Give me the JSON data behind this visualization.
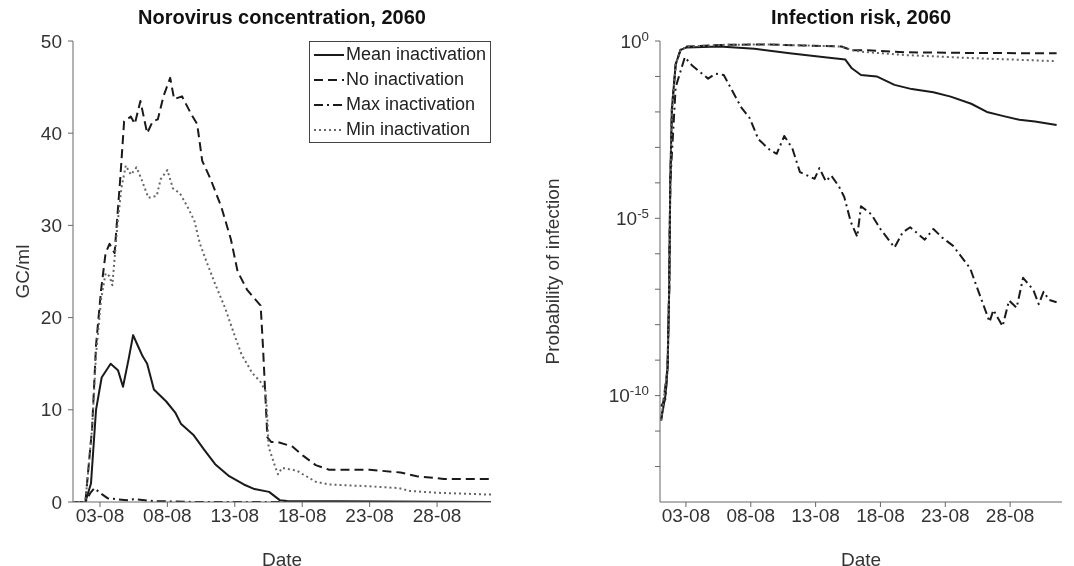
{
  "chart_data": [
    {
      "type": "line",
      "title": "Norovirus concentration, 2060",
      "xlabel": "Date",
      "ylabel": "GC/ml",
      "legend": "top right",
      "xlim": [
        "--08-01",
        "--09-01"
      ],
      "xticks": [
        {
          "value": "--08-03",
          "label": "03-08"
        },
        {
          "value": "--08-08",
          "label": "08-08"
        },
        {
          "value": "--08-13",
          "label": "13-08"
        },
        {
          "value": "--08-18",
          "label": "18-08"
        },
        {
          "value": "--08-23",
          "label": "23-08"
        },
        {
          "value": "--08-28",
          "label": "28-08"
        }
      ],
      "ylim": [
        0,
        50
      ],
      "yticks": [
        0,
        10,
        20,
        30,
        40,
        50
      ],
      "series": [
        {
          "name": "Mean inactivation",
          "color": "#1a1a1a",
          "line_style": "solid",
          "x": [
            "--08-01T00:00",
            "--08-01T22:00",
            "--08-02T08:00",
            "--08-02T17:00",
            "--08-03T03:00",
            "--08-03T19:00",
            "--08-04T08:00",
            "--08-04T17:00",
            "--08-05T03:00",
            "--08-05T11:00",
            "--08-05T19:00",
            "--08-06T04:00",
            "--08-06T12:00",
            "--08-07T00:00",
            "--08-07T22:00",
            "--08-08T14:00",
            "--08-09T00:00",
            "--08-09T22:00",
            "--08-10T17:00",
            "--08-11T13:00",
            "--08-12T14:00",
            "--08-13T16:00",
            "--08-14T11:00",
            "--08-15T13:00",
            "--08-16T08:00",
            "--08-16T21:00",
            "--09-01T00:00"
          ],
          "values": [
            0,
            0,
            2,
            10,
            13.5,
            15,
            14.3,
            12.5,
            15.5,
            18.1,
            17,
            15.8,
            15,
            12.2,
            10.9,
            9.7,
            8.5,
            7.3,
            5.7,
            4.1,
            2.8,
            1.9,
            1.4,
            1.1,
            0.2,
            0.1,
            0
          ]
        },
        {
          "name": "No inactivation",
          "color": "#1a1a1a",
          "line_style": "dashed",
          "x": [
            "--08-01T00:00",
            "--08-01T22:00",
            "--08-02T10:00",
            "--08-02T17:00",
            "--08-03T02:00",
            "--08-03T10:00",
            "--08-03T17:00",
            "--08-04T02:00",
            "--08-04T12:00",
            "--08-04T19:00",
            "--08-05T07:00",
            "--08-05T14:00",
            "--08-06T00:00",
            "--08-06T12:00",
            "--08-06T22:00",
            "--08-07T07:00",
            "--08-07T17:00",
            "--08-08T05:00",
            "--08-08T12:00",
            "--08-09T02:00",
            "--08-09T19:00",
            "--08-10T05:00",
            "--08-10T14:00",
            "--08-11T05:00",
            "--08-12T00:00",
            "--08-12T17:00",
            "--08-13T05:00",
            "--08-13T22:00",
            "--08-14T12:00",
            "--08-14T22:00",
            "--08-15T02:00",
            "--08-15T10:00",
            "--08-15T17:00",
            "--08-16T05:00",
            "--08-17T07:00",
            "--08-18T02:00",
            "--08-19T00:00",
            "--08-20T00:00",
            "--08-23T00:00",
            "--08-25T07:00",
            "--08-26T12:00",
            "--08-28T12:00",
            "--09-01T00:00"
          ],
          "values": [
            0,
            0,
            8,
            17,
            23,
            27,
            28,
            27,
            35,
            41.3,
            41.8,
            41,
            43.5,
            40,
            41.3,
            41.5,
            44,
            46,
            43.7,
            44,
            42,
            41,
            37,
            35,
            32,
            28.5,
            25,
            23,
            22,
            21.3,
            17,
            7,
            6.5,
            6.5,
            6,
            5,
            4,
            3.5,
            3.5,
            3.2,
            2.8,
            2.5,
            2.5
          ]
        },
        {
          "name": "Max inactivation",
          "color": "#1a1a1a",
          "line_style": "dashdot",
          "x": [
            "--08-01T00:00",
            "--08-01T22:00",
            "--08-02T07:00",
            "--08-02T14:00",
            "--08-03T00:00",
            "--08-03T14:00",
            "--08-05T00:00",
            "--08-05T12:00",
            "--08-07T00:00",
            "--08-10T00:00",
            "--09-01T00:00"
          ],
          "values": [
            0,
            0,
            1.0,
            1.5,
            1.0,
            0.4,
            0.2,
            0.3,
            0.1,
            0,
            0
          ]
        },
        {
          "name": "Min inactivation",
          "color": "#666666",
          "line_style": "dotted",
          "x": [
            "--08-01T00:00",
            "--08-01T22:00",
            "--08-02T10:00",
            "--08-02T17:00",
            "--08-03T02:00",
            "--08-03T10:00",
            "--08-03T17:00",
            "--08-03T22:00",
            "--08-04T07:00",
            "--08-04T14:00",
            "--08-04T22:00",
            "--08-05T07:00",
            "--08-05T17:00",
            "--08-06T02:00",
            "--08-06T14:00",
            "--08-07T05:00",
            "--08-07T12:00",
            "--08-08T00:00",
            "--08-08T10:00",
            "--08-08T22:00",
            "--08-09T12:00",
            "--08-10T00:00",
            "--08-10T10:00",
            "--08-10T22:00",
            "--08-11T14:00",
            "--08-12T07:00",
            "--08-13T00:00",
            "--08-13T12:00",
            "--08-14T07:00",
            "--08-14T22:00",
            "--08-15T07:00",
            "--08-15T10:00",
            "--08-15T12:00",
            "--08-16T00:00",
            "--08-16T05:00",
            "--08-16T12:00",
            "--08-17T14:00",
            "--08-18T07:00",
            "--08-19T00:00",
            "--08-20T00:00",
            "--08-23T00:00",
            "--08-25T05:00",
            "--08-26T00:00",
            "--08-28T00:00",
            "--09-01T00:00"
          ],
          "values": [
            0,
            0,
            8,
            16,
            22,
            24.8,
            24.5,
            23.5,
            30,
            34,
            36.5,
            35.5,
            36.3,
            35,
            33,
            33.2,
            35,
            36,
            34,
            33.5,
            32,
            30.5,
            28,
            26,
            23.5,
            21,
            18,
            16,
            14,
            13,
            12,
            9,
            6,
            3.8,
            3,
            3.7,
            3.4,
            2.8,
            2.2,
            1.9,
            1.7,
            1.5,
            1.2,
            1.0,
            0.8
          ]
        }
      ]
    },
    {
      "type": "line",
      "title": "Infection risk, 2060",
      "xlabel": "Date",
      "ylabel": "Probability of infection",
      "log": true,
      "xlim": [
        "--08-01",
        "--09-01"
      ],
      "xticks": [
        {
          "value": "--08-03",
          "label": "03-08"
        },
        {
          "value": "--08-08",
          "label": "08-08"
        },
        {
          "value": "--08-13",
          "label": "13-08"
        },
        {
          "value": "--08-18",
          "label": "18-08"
        },
        {
          "value": "--08-23",
          "label": "23-08"
        },
        {
          "value": "--08-28",
          "label": "28-08"
        }
      ],
      "ylim": [
        1e-13,
        1
      ],
      "yticks": [
        {
          "value": 1,
          "label": "10$^{0}$"
        },
        {
          "value": 0.1,
          "label": null
        },
        {
          "value": 0.01,
          "label": null
        },
        {
          "value": 0.001,
          "label": null
        },
        {
          "value": 0.0001,
          "label": null
        },
        {
          "value": 1e-05,
          "label": "10$^{-5}$"
        },
        {
          "value": 1e-06,
          "label": null
        },
        {
          "value": 1e-07,
          "label": null
        },
        {
          "value": 1e-08,
          "label": null
        },
        {
          "value": 1e-09,
          "label": null
        },
        {
          "value": 1e-10,
          "label": "10$^{-10}$"
        },
        {
          "value": 1e-11,
          "label": null
        },
        {
          "value": 1e-12,
          "label": null
        }
      ],
      "series": [
        {
          "color": "#1a1a1a",
          "line_style": "solid",
          "x": [
            "--08-01T02:00",
            "--08-01T10:00",
            "--08-01T14:00",
            "--08-01T17:00",
            "--08-01T19:00",
            "--08-01T22:00",
            "--08-02T05:00",
            "--08-02T14:00",
            "--08-03T02:00",
            "--08-05T14:00",
            "--08-08T07:00",
            "--08-11T00:00",
            "--08-13T17:00",
            "--08-15T07:00",
            "--08-15T19:00",
            "--08-16T12:00",
            "--08-17T17:00",
            "--08-19T02:00",
            "--08-20T10:00",
            "--08-22T02:00",
            "--08-23T10:00",
            "--08-25T00:00",
            "--08-26T05:00",
            "--08-27T12:00",
            "--08-28T17:00",
            "--08-29T22:00",
            "--08-31T14:00"
          ],
          "values": [
            2e-11,
            1e-10,
            6e-10,
            1e-07,
            0.0001,
            0.012,
            0.22,
            0.56,
            0.66,
            0.7,
            0.6,
            0.45,
            0.35,
            0.3,
            0.17,
            0.11,
            0.1,
            0.058,
            0.044,
            0.036,
            0.027,
            0.017,
            0.01,
            0.0076,
            0.006,
            0.0054,
            0.0043
          ]
        },
        {
          "color": "#1a1a1a",
          "line_style": "dashed",
          "x": [
            "--08-01T02:00",
            "--08-01T14:00",
            "--08-01T17:00",
            "--08-01T19:00",
            "--08-01T22:00",
            "--08-02T05:00",
            "--08-02T14:00",
            "--08-03T02:00",
            "--08-06T00:00",
            "--08-09T00:00",
            "--08-12T00:00",
            "--08-15T00:00",
            "--08-15T19:00",
            "--08-17T00:00",
            "--08-20T00:00",
            "--08-25T00:00",
            "--08-31T14:00"
          ],
          "values": [
            2e-11,
            6e-10,
            1e-07,
            0.0001,
            0.012,
            0.22,
            0.56,
            0.7,
            0.78,
            0.8,
            0.75,
            0.7,
            0.55,
            0.55,
            0.48,
            0.46,
            0.45
          ]
        },
        {
          "color": "#1a1a1a",
          "line_style": "dashdot",
          "x": [
            "--08-01T02:00",
            "--08-01T10:00",
            "--08-01T14:00",
            "--08-01T17:00",
            "--08-01T19:00",
            "--08-02T05:00",
            "--08-02T22:00",
            "--08-03T12:00",
            "--08-04T17:00",
            "--08-05T07:00",
            "--08-05T22:00",
            "--08-06T12:00",
            "--08-07T07:00",
            "--08-07T22:00",
            "--08-08T14:00",
            "--08-09T12:00",
            "--08-10T00:00",
            "--08-10T14:00",
            "--08-11T05:00",
            "--08-11T19:00",
            "--08-12T22:00",
            "--08-13T07:00",
            "--08-13T19:00",
            "--08-14T05:00",
            "--08-14T19:00",
            "--08-15T05:00",
            "--08-15T17:00",
            "--08-16T05:00",
            "--08-16T12:00",
            "--08-17T07:00",
            "--08-18T00:00",
            "--08-19T02:00",
            "--08-19T17:00",
            "--08-20T07:00",
            "--08-21T10:00",
            "--08-22T02:00",
            "--08-22T19:00",
            "--08-23T14:00",
            "--08-24T22:00",
            "--08-25T10:00",
            "--08-26T10:00",
            "--08-26T17:00",
            "--08-27T10:00",
            "--08-27T22:00",
            "--08-28T12:00",
            "--08-29T00:00",
            "--08-29T19:00",
            "--08-30T05:00",
            "--08-30T14:00",
            "--08-31T00:00",
            "--08-31T14:00"
          ],
          "values": [
            5e-11,
            8e-11,
            6e-10,
            1e-07,
            0.0001,
            0.05,
            0.35,
            0.2,
            0.087,
            0.12,
            0.11,
            0.044,
            0.013,
            0.0067,
            0.0017,
            0.00083,
            0.00066,
            0.0021,
            0.00093,
            0.0002,
            0.00013,
            0.00026,
            0.00011,
            0.00016,
            8e-05,
            4e-05,
            8e-06,
            3e-06,
            2.2e-05,
            1.3e-05,
            5e-06,
            1.5e-06,
            4e-06,
            5.6e-06,
            2.5e-06,
            5e-06,
            2.8e-06,
            1.7e-06,
            3.9e-07,
            1.2e-07,
            1.2e-08,
            2.6e-08,
            9e-09,
            4.8e-08,
            3e-08,
            2.1e-07,
            9.5e-08,
            3.8e-08,
            8.5e-08,
            5e-08,
            4.3e-08
          ]
        },
        {
          "color": "#666666",
          "line_style": "dotted",
          "x": [
            "--08-01T02:00",
            "--08-01T14:00",
            "--08-01T17:00",
            "--08-01T19:00",
            "--08-01T22:00",
            "--08-02T05:00",
            "--08-02T14:00",
            "--08-03T02:00",
            "--08-06T00:00",
            "--08-09T00:00",
            "--08-12T00:00",
            "--08-15T00:00",
            "--08-15T19:00",
            "--08-16T12:00",
            "--08-20T00:00",
            "--08-25T00:00",
            "--08-31T14:00"
          ],
          "values": [
            2e-11,
            6e-10,
            1e-07,
            0.0001,
            0.012,
            0.22,
            0.56,
            0.7,
            0.78,
            0.8,
            0.75,
            0.7,
            0.55,
            0.5,
            0.4,
            0.33,
            0.27
          ]
        }
      ]
    }
  ]
}
